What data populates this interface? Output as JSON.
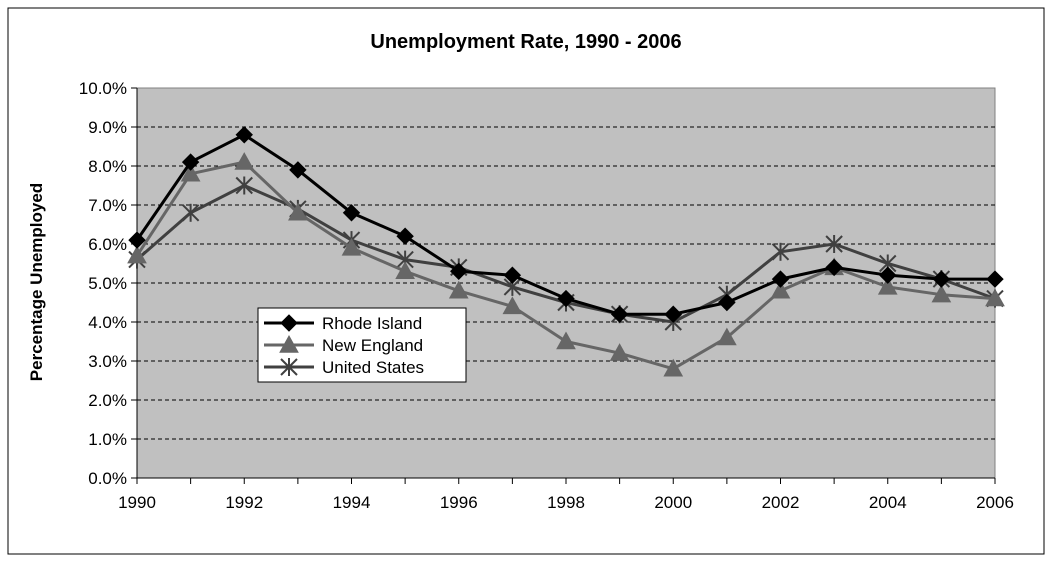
{
  "chart_data": {
    "type": "line",
    "title": "Unemployment Rate, 1990 - 2006",
    "xlabel": "",
    "ylabel": "Percentage Unemployed",
    "x": [
      1990,
      1991,
      1992,
      1993,
      1994,
      1995,
      1996,
      1997,
      1998,
      1999,
      2000,
      2001,
      2002,
      2003,
      2004,
      2005,
      2006
    ],
    "x_tick_labels": [
      "1990",
      "1992",
      "1994",
      "1996",
      "1998",
      "2000",
      "2002",
      "2004",
      "2006"
    ],
    "y_tick_labels": [
      "0.0%",
      "1.0%",
      "2.0%",
      "3.0%",
      "4.0%",
      "5.0%",
      "6.0%",
      "7.0%",
      "8.0%",
      "9.0%",
      "10.0%"
    ],
    "xlim": [
      1990,
      2006
    ],
    "ylim": [
      0,
      10
    ],
    "y_unit": "%",
    "grid": "horizontal dashed",
    "legend_position": "inside-left",
    "plot_background": "#c0c0c0",
    "series": [
      {
        "name": "Rhode Island",
        "marker": "diamond",
        "color": "#000000",
        "values": [
          6.1,
          8.1,
          8.8,
          7.9,
          6.8,
          6.2,
          5.3,
          5.2,
          4.6,
          4.2,
          4.2,
          4.5,
          5.1,
          5.4,
          5.2,
          5.1,
          5.1
        ]
      },
      {
        "name": "New England",
        "marker": "triangle",
        "color": "#666666",
        "values": [
          5.7,
          7.8,
          8.1,
          6.8,
          5.9,
          5.3,
          4.8,
          4.4,
          3.5,
          3.2,
          2.8,
          3.6,
          4.8,
          5.4,
          4.9,
          4.7,
          4.6
        ]
      },
      {
        "name": "United States",
        "marker": "asterisk",
        "color": "#404040",
        "values": [
          5.6,
          6.8,
          7.5,
          6.9,
          6.1,
          5.6,
          5.4,
          4.9,
          4.5,
          4.2,
          4.0,
          4.7,
          5.8,
          6.0,
          5.5,
          5.1,
          4.6
        ]
      }
    ]
  }
}
